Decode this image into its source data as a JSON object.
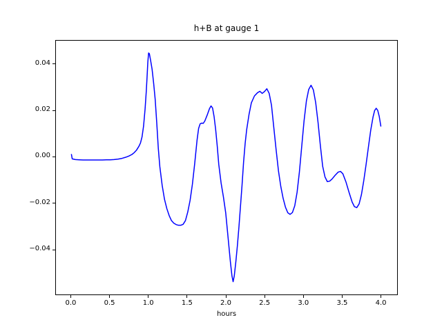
{
  "chart_data": {
    "type": "line",
    "title": "h+B at gauge 1",
    "xlabel": "hours",
    "ylabel": "",
    "grid": false,
    "legend": false,
    "xlim": [
      -0.2,
      4.2
    ],
    "ylim": [
      -0.059,
      0.0503
    ],
    "x_ticks": [
      0.0,
      0.5,
      1.0,
      1.5,
      2.0,
      2.5,
      3.0,
      3.5,
      4.0
    ],
    "x_tick_labels": [
      "0.0",
      "0.5",
      "1.0",
      "1.5",
      "2.0",
      "2.5",
      "3.0",
      "3.5",
      "4.0"
    ],
    "y_ticks": [
      -0.04,
      -0.02,
      0.0,
      0.02,
      0.04
    ],
    "y_tick_labels": [
      "−0.04",
      "−0.02",
      "0.00",
      "0.02",
      "0.04"
    ],
    "series": [
      {
        "color": "#0000ff",
        "line_width": 1.5,
        "points": [
          [
            0.0,
            0.0013
          ],
          [
            0.01,
            -0.0006
          ],
          [
            0.05,
            -0.0009
          ],
          [
            0.1,
            -0.001
          ],
          [
            0.15,
            -0.0011
          ],
          [
            0.2,
            -0.0011
          ],
          [
            0.25,
            -0.0011
          ],
          [
            0.3,
            -0.0011
          ],
          [
            0.35,
            -0.0011
          ],
          [
            0.4,
            -0.0011
          ],
          [
            0.45,
            -0.001
          ],
          [
            0.5,
            -0.001
          ],
          [
            0.55,
            -0.0009
          ],
          [
            0.6,
            -0.0007
          ],
          [
            0.65,
            -0.0004
          ],
          [
            0.7,
            0.0001
          ],
          [
            0.74,
            0.0006
          ],
          [
            0.78,
            0.0013
          ],
          [
            0.81,
            0.0021
          ],
          [
            0.84,
            0.0032
          ],
          [
            0.87,
            0.0048
          ],
          [
            0.89,
            0.0062
          ],
          [
            0.91,
            0.0088
          ],
          [
            0.93,
            0.0135
          ],
          [
            0.95,
            0.021
          ],
          [
            0.965,
            0.0285
          ],
          [
            0.975,
            0.0345
          ],
          [
            0.985,
            0.041
          ],
          [
            0.995,
            0.045
          ],
          [
            1.005,
            0.0447
          ],
          [
            1.02,
            0.042
          ],
          [
            1.04,
            0.038
          ],
          [
            1.06,
            0.032
          ],
          [
            1.08,
            0.025
          ],
          [
            1.1,
            0.015
          ],
          [
            1.12,
            0.004
          ],
          [
            1.14,
            -0.004
          ],
          [
            1.17,
            -0.012
          ],
          [
            1.2,
            -0.018
          ],
          [
            1.23,
            -0.022
          ],
          [
            1.26,
            -0.025
          ],
          [
            1.29,
            -0.0272
          ],
          [
            1.32,
            -0.0283
          ],
          [
            1.35,
            -0.0289
          ],
          [
            1.38,
            -0.0292
          ],
          [
            1.41,
            -0.0292
          ],
          [
            1.44,
            -0.0288
          ],
          [
            1.47,
            -0.0272
          ],
          [
            1.5,
            -0.0235
          ],
          [
            1.53,
            -0.0185
          ],
          [
            1.56,
            -0.0115
          ],
          [
            1.59,
            -0.0025
          ],
          [
            1.62,
            0.0075
          ],
          [
            1.64,
            0.0125
          ],
          [
            1.66,
            0.0145
          ],
          [
            1.68,
            0.0148
          ],
          [
            1.7,
            0.0147
          ],
          [
            1.72,
            0.0157
          ],
          [
            1.75,
            0.0182
          ],
          [
            1.78,
            0.021
          ],
          [
            1.8,
            0.0222
          ],
          [
            1.82,
            0.0213
          ],
          [
            1.84,
            0.0175
          ],
          [
            1.86,
            0.012
          ],
          [
            1.88,
            0.005
          ],
          [
            1.9,
            -0.003
          ],
          [
            1.93,
            -0.011
          ],
          [
            1.96,
            -0.017
          ],
          [
            1.99,
            -0.024
          ],
          [
            2.01,
            -0.031
          ],
          [
            2.03,
            -0.038
          ],
          [
            2.05,
            -0.045
          ],
          [
            2.07,
            -0.051
          ],
          [
            2.085,
            -0.0535
          ],
          [
            2.1,
            -0.051
          ],
          [
            2.12,
            -0.045
          ],
          [
            2.14,
            -0.038
          ],
          [
            2.16,
            -0.03
          ],
          [
            2.18,
            -0.021
          ],
          [
            2.2,
            -0.012
          ],
          [
            2.22,
            -0.002
          ],
          [
            2.24,
            0.006
          ],
          [
            2.26,
            0.012
          ],
          [
            2.29,
            0.0185
          ],
          [
            2.32,
            0.0235
          ],
          [
            2.36,
            0.0265
          ],
          [
            2.4,
            0.0279
          ],
          [
            2.43,
            0.0285
          ],
          [
            2.46,
            0.0276
          ],
          [
            2.49,
            0.0284
          ],
          [
            2.52,
            0.0296
          ],
          [
            2.55,
            0.0276
          ],
          [
            2.58,
            0.0225
          ],
          [
            2.61,
            0.0128
          ],
          [
            2.64,
            0.0032
          ],
          [
            2.67,
            -0.0058
          ],
          [
            2.7,
            -0.0125
          ],
          [
            2.73,
            -0.0176
          ],
          [
            2.76,
            -0.0214
          ],
          [
            2.79,
            -0.0238
          ],
          [
            2.82,
            -0.0245
          ],
          [
            2.85,
            -0.0237
          ],
          [
            2.88,
            -0.0208
          ],
          [
            2.91,
            -0.015
          ],
          [
            2.94,
            -0.0062
          ],
          [
            2.97,
            0.0048
          ],
          [
            3.0,
            0.0158
          ],
          [
            3.03,
            0.0243
          ],
          [
            3.06,
            0.0293
          ],
          [
            3.09,
            0.0311
          ],
          [
            3.12,
            0.0291
          ],
          [
            3.15,
            0.0236
          ],
          [
            3.18,
            0.0152
          ],
          [
            3.21,
            0.0052
          ],
          [
            3.24,
            -0.0038
          ],
          [
            3.27,
            -0.0084
          ],
          [
            3.3,
            -0.0104
          ],
          [
            3.33,
            -0.0102
          ],
          [
            3.36,
            -0.0093
          ],
          [
            3.4,
            -0.0077
          ],
          [
            3.44,
            -0.0063
          ],
          [
            3.47,
            -0.006
          ],
          [
            3.5,
            -0.007
          ],
          [
            3.54,
            -0.0105
          ],
          [
            3.58,
            -0.015
          ],
          [
            3.62,
            -0.0192
          ],
          [
            3.65,
            -0.0212
          ],
          [
            3.68,
            -0.0216
          ],
          [
            3.71,
            -0.02
          ],
          [
            3.74,
            -0.016
          ],
          [
            3.77,
            -0.01
          ],
          [
            3.8,
            -0.003
          ],
          [
            3.83,
            0.0045
          ],
          [
            3.86,
            0.0118
          ],
          [
            3.89,
            0.0175
          ],
          [
            3.91,
            0.0202
          ],
          [
            3.93,
            0.0212
          ],
          [
            3.95,
            0.0203
          ],
          [
            3.97,
            0.0176
          ],
          [
            3.99,
            0.0135
          ]
        ]
      }
    ]
  }
}
